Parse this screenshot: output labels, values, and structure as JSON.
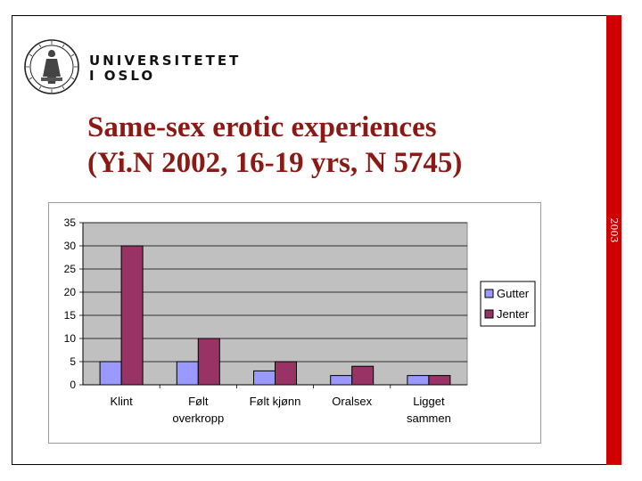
{
  "header": {
    "logo_icon": "university-of-oslo-seal",
    "university_line1": "UNIVERSITETET",
    "university_line2": "I OSLO"
  },
  "slide": {
    "title_line1": "Same-sex erotic experiences",
    "title_line2": "(Yi.N 2002, 16-19 yrs, N 5745)",
    "side_label": "2003",
    "accent_color": "#d00000",
    "title_color": "#8b1a14"
  },
  "chart_data": {
    "type": "bar",
    "title": "",
    "xlabel": "",
    "ylabel": "",
    "categories": [
      [
        "Klint"
      ],
      [
        "Følt",
        "overkropp"
      ],
      [
        "Følt kjønn"
      ],
      [
        "Oralsex"
      ],
      [
        "Ligget",
        "sammen"
      ]
    ],
    "series": [
      {
        "name": "Gutter",
        "values": [
          5,
          5,
          3,
          2,
          2
        ],
        "color": "#9999ff"
      },
      {
        "name": "Jenter",
        "values": [
          30,
          10,
          5,
          4,
          2
        ],
        "color": "#993366"
      }
    ],
    "ylim": [
      0,
      35
    ],
    "yticks": [
      "0",
      "5",
      "10",
      "15",
      "20",
      "25",
      "30",
      "35"
    ],
    "grid": true,
    "legend_position": "right",
    "plot_background": "#c0c0c0"
  }
}
